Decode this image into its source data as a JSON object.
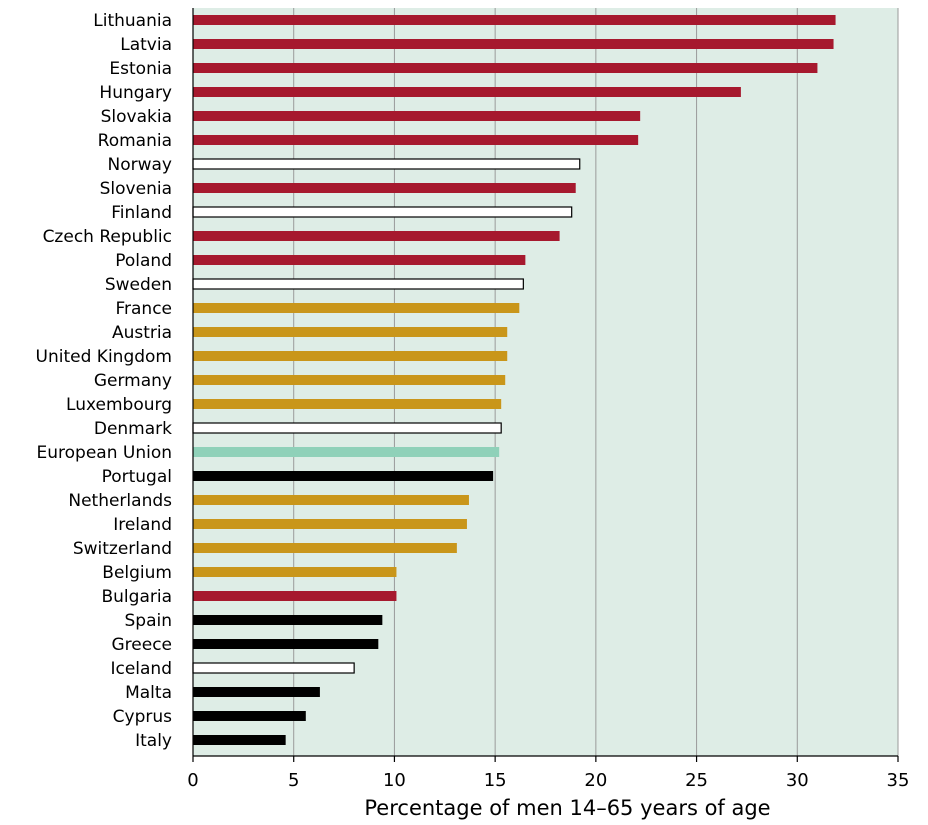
{
  "chart_data": {
    "type": "bar",
    "orientation": "horizontal",
    "title": "",
    "xlabel": "Percentage of men 14–65 years of age",
    "ylabel": "",
    "xlim": [
      0,
      35
    ],
    "xticks": [
      "0",
      "5",
      "10",
      "15",
      "20",
      "25",
      "30",
      "35"
    ],
    "grid": "vertical",
    "plot_background": "#deede6",
    "colors": {
      "red": "#a6192e",
      "gold": "#c9961a",
      "white": "#ffffff",
      "black": "#000000",
      "mint": "#8fd1b9"
    },
    "categories": [
      "Lithuania",
      "Latvia",
      "Estonia",
      "Hungary",
      "Slovakia",
      "Romania",
      "Norway",
      "Slovenia",
      "Finland",
      "Czech Republic",
      "Poland",
      "Sweden",
      "France",
      "Austria",
      "United Kingdom",
      "Germany",
      "Luxembourg",
      "Denmark",
      "European Union",
      "Portugal",
      "Netherlands",
      "Ireland",
      "Switzerland",
      "Belgium",
      "Bulgaria",
      "Spain",
      "Greece",
      "Iceland",
      "Malta",
      "Cyprus",
      "Italy"
    ],
    "values": [
      31.9,
      31.8,
      31.0,
      27.2,
      22.2,
      22.1,
      19.2,
      19.0,
      18.8,
      18.2,
      16.5,
      16.4,
      16.2,
      15.6,
      15.6,
      15.5,
      15.3,
      15.3,
      15.2,
      14.9,
      13.7,
      13.6,
      13.1,
      10.1,
      10.1,
      9.4,
      9.2,
      8.0,
      6.3,
      5.6,
      4.6
    ],
    "bar_colors": [
      "red",
      "red",
      "red",
      "red",
      "red",
      "red",
      "white",
      "red",
      "white",
      "red",
      "red",
      "white",
      "gold",
      "gold",
      "gold",
      "gold",
      "gold",
      "white",
      "mint",
      "black",
      "gold",
      "gold",
      "gold",
      "gold",
      "red",
      "black",
      "black",
      "white",
      "black",
      "black",
      "black"
    ]
  }
}
